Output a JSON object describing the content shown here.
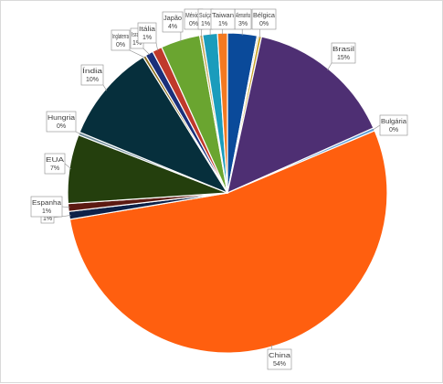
{
  "chart_data": {
    "type": "pie",
    "title": "",
    "legend": "none",
    "data_labels": "category-and-percent-callouts",
    "slices": [
      {
        "label": "Alemanha",
        "value": 3,
        "display": "3%",
        "color": "#0a4a9a"
      },
      {
        "label": "",
        "value": 0.15,
        "display": "",
        "color": "#b0a070"
      },
      {
        "label": "Bélgica",
        "value": 0.3,
        "display": "0%",
        "color": "#c9a227"
      },
      {
        "label": "Brasil",
        "value": 15,
        "display": "15%",
        "color": "#4e2f73"
      },
      {
        "label": "Bulgária",
        "value": 0.3,
        "display": "0%",
        "color": "#5b9bd5"
      },
      {
        "label": "China",
        "value": 54,
        "display": "54%",
        "color": "#ff5f0f"
      },
      {
        "label": "",
        "value": 0.8,
        "display": "1%",
        "color": "#0d2148"
      },
      {
        "label": "Espanha",
        "value": 0.8,
        "display": "1%",
        "color": "#5c1a12"
      },
      {
        "label": "EUA",
        "value": 7,
        "display": "7%",
        "color": "#243f0d"
      },
      {
        "label": "Hungria",
        "value": 0.3,
        "display": "0%",
        "color": "#6d8a98"
      },
      {
        "label": "Índia",
        "value": 10,
        "display": "10%",
        "color": "#062f3c"
      },
      {
        "label": "Inglaterra",
        "value": 0.3,
        "display": "0%",
        "color": "#8a6c1a"
      },
      {
        "label": "Israel",
        "value": 0.8,
        "display": "1%",
        "color": "#1a2f7a"
      },
      {
        "label": "Itália",
        "value": 1,
        "display": "1%",
        "color": "#c0392b"
      },
      {
        "label": "Japão",
        "value": 4,
        "display": "4%",
        "color": "#6aa530"
      },
      {
        "label": "México",
        "value": 0.3,
        "display": "0%",
        "color": "#c5a85a"
      },
      {
        "label": "Suíça",
        "value": 1.5,
        "display": "1%",
        "color": "#1a9cbc"
      },
      {
        "label": "Taiwan",
        "value": 1,
        "display": "1%",
        "color": "#f47920"
      }
    ]
  }
}
